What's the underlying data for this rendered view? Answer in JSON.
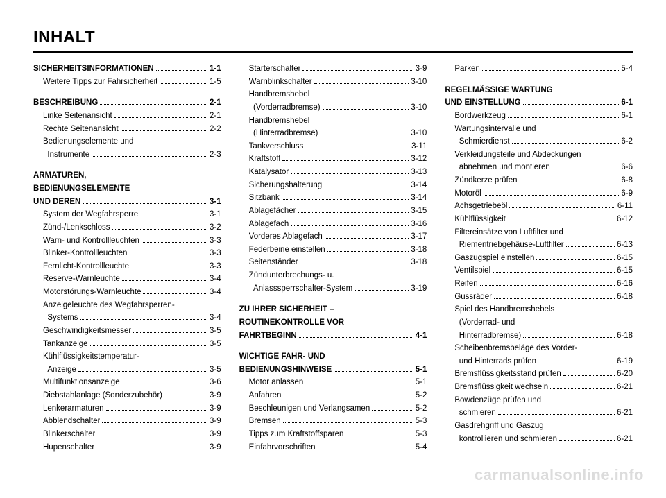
{
  "title": "INHALT",
  "watermark": "carmanualsonline.info",
  "columns": [
    [
      {
        "type": "entry",
        "bold": true,
        "label": "SICHERHEITSINFORMATIONEN",
        "page": "1-1"
      },
      {
        "type": "entry",
        "indent": true,
        "label": "Weitere Tipps zur Fahrsicherheit",
        "page": "1-5"
      },
      {
        "type": "spacer"
      },
      {
        "type": "entry",
        "bold": true,
        "label": "BESCHREIBUNG",
        "page": "2-1"
      },
      {
        "type": "entry",
        "indent": true,
        "label": "Linke Seitenansicht",
        "page": "2-1"
      },
      {
        "type": "entry",
        "indent": true,
        "label": "Rechte Seitenansicht",
        "page": "2-2"
      },
      {
        "type": "entry",
        "indent": true,
        "label": "Bedienungselemente und"
      },
      {
        "type": "entry",
        "indent": true,
        "label": "  Instrumente",
        "page": "2-3"
      },
      {
        "type": "spacer"
      },
      {
        "type": "entry",
        "bold": true,
        "label": "ARMATUREN,"
      },
      {
        "type": "entry",
        "bold": true,
        "label": "BEDIENUNGSELEMENTE"
      },
      {
        "type": "entry",
        "bold": true,
        "label": "UND DEREN",
        "page": "3-1"
      },
      {
        "type": "entry",
        "indent": true,
        "label": "System der Wegfahrsperre",
        "page": "3-1"
      },
      {
        "type": "entry",
        "indent": true,
        "label": "Zünd-/Lenkschloss",
        "page": "3-2"
      },
      {
        "type": "entry",
        "indent": true,
        "label": "Warn- und Kontrollleuchten",
        "page": "3-3"
      },
      {
        "type": "entry",
        "indent": true,
        "label": "Blinker-Kontrollleuchten",
        "page": "3-3"
      },
      {
        "type": "entry",
        "indent": true,
        "label": "Fernlicht-Kontrollleuchte",
        "page": "3-3"
      },
      {
        "type": "entry",
        "indent": true,
        "label": "Reserve-Warnleuchte",
        "page": "3-4"
      },
      {
        "type": "entry",
        "indent": true,
        "label": "Motorstörungs-Warnleuchte",
        "page": "3-4"
      },
      {
        "type": "entry",
        "indent": true,
        "label": "Anzeigeleuchte des Wegfahrsperren-"
      },
      {
        "type": "entry",
        "indent": true,
        "label": "  Systems",
        "page": "3-4"
      },
      {
        "type": "entry",
        "indent": true,
        "label": "Geschwindigkeitsmesser",
        "page": "3-5"
      },
      {
        "type": "entry",
        "indent": true,
        "label": "Tankanzeige",
        "page": "3-5"
      },
      {
        "type": "entry",
        "indent": true,
        "label": "Kühlflüssigkeitstemperatur-"
      },
      {
        "type": "entry",
        "indent": true,
        "label": "  Anzeige",
        "page": "3-5"
      },
      {
        "type": "entry",
        "indent": true,
        "label": "Multifunktionsanzeige",
        "page": "3-6"
      },
      {
        "type": "entry",
        "indent": true,
        "label": "Diebstahlanlage (Sonderzubehör)",
        "page": "3-9"
      },
      {
        "type": "entry",
        "indent": true,
        "label": "Lenkerarmaturen",
        "page": "3-9"
      },
      {
        "type": "entry",
        "indent": true,
        "label": "Abblendschalter",
        "page": "3-9"
      },
      {
        "type": "entry",
        "indent": true,
        "label": "Blinkerschalter",
        "page": "3-9"
      },
      {
        "type": "entry",
        "indent": true,
        "label": "Hupenschalter",
        "page": "3-9"
      }
    ],
    [
      {
        "type": "entry",
        "indent": true,
        "label": "Starterschalter",
        "page": "3-9"
      },
      {
        "type": "entry",
        "indent": true,
        "label": "Warnblinkschalter",
        "page": "3-10"
      },
      {
        "type": "entry",
        "indent": true,
        "label": "Handbremshebel"
      },
      {
        "type": "entry",
        "indent": true,
        "label": "  (Vorderradbremse)",
        "page": "3-10"
      },
      {
        "type": "entry",
        "indent": true,
        "label": "Handbremshebel"
      },
      {
        "type": "entry",
        "indent": true,
        "label": "  (Hinterradbremse)",
        "page": "3-10"
      },
      {
        "type": "entry",
        "indent": true,
        "label": "Tankverschluss",
        "page": "3-11"
      },
      {
        "type": "entry",
        "indent": true,
        "label": "Kraftstoff",
        "page": "3-12"
      },
      {
        "type": "entry",
        "indent": true,
        "label": "Katalysator",
        "page": "3-13"
      },
      {
        "type": "entry",
        "indent": true,
        "label": "Sicherungshalterung",
        "page": "3-14"
      },
      {
        "type": "entry",
        "indent": true,
        "label": "Sitzbank",
        "page": "3-14"
      },
      {
        "type": "entry",
        "indent": true,
        "label": "Ablagefächer",
        "page": "3-15"
      },
      {
        "type": "entry",
        "indent": true,
        "label": "Ablagefach",
        "page": "3-16"
      },
      {
        "type": "entry",
        "indent": true,
        "label": "Vorderes Ablagefach",
        "page": "3-17"
      },
      {
        "type": "entry",
        "indent": true,
        "label": "Federbeine einstellen",
        "page": "3-18"
      },
      {
        "type": "entry",
        "indent": true,
        "label": "Seitenständer",
        "page": "3-18"
      },
      {
        "type": "entry",
        "indent": true,
        "label": "Zündunterbrechungs- u."
      },
      {
        "type": "entry",
        "indent": true,
        "label": "  Anlasssperrschalter-System",
        "page": "3-19"
      },
      {
        "type": "spacer"
      },
      {
        "type": "entry",
        "bold": true,
        "label": "ZU IHRER SICHERHEIT –"
      },
      {
        "type": "entry",
        "bold": true,
        "label": "ROUTINEKONTROLLE VOR"
      },
      {
        "type": "entry",
        "bold": true,
        "label": "FAHRTBEGINN",
        "page": "4-1"
      },
      {
        "type": "spacer"
      },
      {
        "type": "entry",
        "bold": true,
        "label": "WICHTIGE FAHR- UND"
      },
      {
        "type": "entry",
        "bold": true,
        "label": "BEDIENUNGSHINWEISE",
        "page": "5-1"
      },
      {
        "type": "entry",
        "indent": true,
        "label": "Motor anlassen",
        "page": "5-1"
      },
      {
        "type": "entry",
        "indent": true,
        "label": "Anfahren",
        "page": "5-2"
      },
      {
        "type": "entry",
        "indent": true,
        "label": "Beschleunigen und Verlangsamen",
        "page": "5-2"
      },
      {
        "type": "entry",
        "indent": true,
        "label": "Bremsen",
        "page": "5-3"
      },
      {
        "type": "entry",
        "indent": true,
        "label": "Tipps zum Kraftstoffsparen",
        "page": "5-3"
      },
      {
        "type": "entry",
        "indent": true,
        "label": "Einfahrvorschriften",
        "page": "5-4"
      }
    ],
    [
      {
        "type": "entry",
        "indent": true,
        "label": "Parken",
        "page": "5-4"
      },
      {
        "type": "spacer"
      },
      {
        "type": "entry",
        "bold": true,
        "label": "REGELMÄSSIGE WARTUNG"
      },
      {
        "type": "entry",
        "bold": true,
        "label": "UND EINSTELLUNG",
        "page": "6-1"
      },
      {
        "type": "entry",
        "indent": true,
        "label": "Bordwerkzeug",
        "page": "6-1"
      },
      {
        "type": "entry",
        "indent": true,
        "label": "Wartungsintervalle und"
      },
      {
        "type": "entry",
        "indent": true,
        "label": "  Schmierdienst",
        "page": "6-2"
      },
      {
        "type": "entry",
        "indent": true,
        "label": "Verkleidungsteile und Abdeckungen"
      },
      {
        "type": "entry",
        "indent": true,
        "label": "  abnehmen und montieren",
        "page": "6-6"
      },
      {
        "type": "entry",
        "indent": true,
        "label": "Zündkerze prüfen",
        "page": "6-8"
      },
      {
        "type": "entry",
        "indent": true,
        "label": "Motoröl",
        "page": "6-9"
      },
      {
        "type": "entry",
        "indent": true,
        "label": "Achsgetriebeöl",
        "page": "6-11"
      },
      {
        "type": "entry",
        "indent": true,
        "label": "Kühlflüssigkeit",
        "page": "6-12"
      },
      {
        "type": "entry",
        "indent": true,
        "label": "Filtereinsätze von Luftfilter und"
      },
      {
        "type": "entry",
        "indent": true,
        "label": "  Riementriebgehäuse-Luftfilter",
        "page": "6-13"
      },
      {
        "type": "entry",
        "indent": true,
        "label": "Gaszugspiel einstellen",
        "page": "6-15"
      },
      {
        "type": "entry",
        "indent": true,
        "label": "Ventilspiel",
        "page": "6-15"
      },
      {
        "type": "entry",
        "indent": true,
        "label": "Reifen",
        "page": "6-16"
      },
      {
        "type": "entry",
        "indent": true,
        "label": "Gussräder",
        "page": "6-18"
      },
      {
        "type": "entry",
        "indent": true,
        "label": "Spiel des Handbremshebels"
      },
      {
        "type": "entry",
        "indent": true,
        "label": "  (Vorderrad- und"
      },
      {
        "type": "entry",
        "indent": true,
        "label": "  Hinterradbremse)",
        "page": "6-18"
      },
      {
        "type": "entry",
        "indent": true,
        "label": "Scheibenbremsbeläge des Vorder-"
      },
      {
        "type": "entry",
        "indent": true,
        "label": "  und Hinterrads prüfen",
        "page": "6-19"
      },
      {
        "type": "entry",
        "indent": true,
        "label": "Bremsflüssigkeitsstand prüfen",
        "page": "6-20"
      },
      {
        "type": "entry",
        "indent": true,
        "label": "Bremsflüssigkeit wechseln",
        "page": "6-21"
      },
      {
        "type": "entry",
        "indent": true,
        "label": "Bowdenzüge prüfen und"
      },
      {
        "type": "entry",
        "indent": true,
        "label": "  schmieren",
        "page": "6-21"
      },
      {
        "type": "entry",
        "indent": true,
        "label": "Gasdrehgriff und Gaszug"
      },
      {
        "type": "entry",
        "indent": true,
        "label": "  kontrollieren und schmieren",
        "page": "6-21"
      }
    ]
  ]
}
